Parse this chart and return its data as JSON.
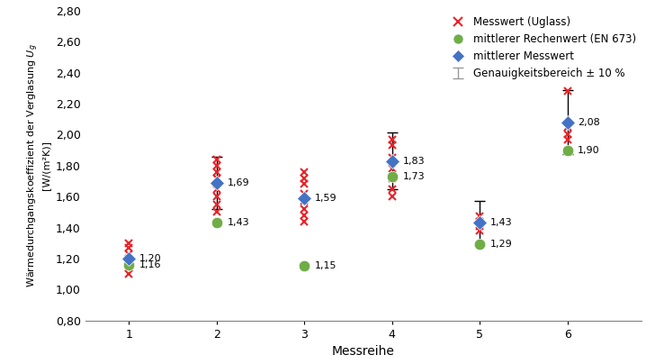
{
  "messreihen": [
    1,
    2,
    3,
    4,
    5,
    6
  ],
  "rechenwert": [
    1.16,
    1.43,
    1.15,
    1.73,
    1.29,
    1.9
  ],
  "mittlerer_messwert": [
    1.2,
    1.69,
    1.59,
    1.83,
    1.43,
    2.08
  ],
  "messwert_scatter": {
    "1": [
      1.1,
      1.14,
      1.17,
      1.2,
      1.23,
      1.27,
      1.3
    ],
    "2": [
      1.5,
      1.55,
      1.6,
      1.65,
      1.68,
      1.72,
      1.76,
      1.8,
      1.84
    ],
    "3": [
      1.44,
      1.48,
      1.52,
      1.57,
      1.62,
      1.68,
      1.72,
      1.76
    ],
    "4": [
      1.6,
      1.65,
      1.72,
      1.78,
      1.85,
      1.93,
      1.97
    ],
    "5": [
      1.38,
      1.41,
      1.44,
      1.47
    ],
    "6": [
      1.9,
      1.97,
      2.0,
      2.05,
      2.28
    ]
  },
  "error_bars": {
    "1": 0.0,
    "2": 0.169,
    "3": 0.0,
    "4": 0.183,
    "5": 0.143,
    "6": 0.208
  },
  "rechenwert_labels": [
    "1,16",
    "1,43",
    "1,15",
    "1,73",
    "1,29",
    "1,90"
  ],
  "messwert_labels": [
    "1,20",
    "1,69",
    "1,59",
    "1,83",
    "1,43",
    "2,08"
  ],
  "ylim": [
    0.8,
    2.8
  ],
  "yticks": [
    0.8,
    1.0,
    1.2,
    1.4,
    1.6,
    1.8,
    2.0,
    2.2,
    2.4,
    2.6,
    2.8
  ],
  "xlabel": "Messreihe",
  "color_red": "#E8242A",
  "color_green": "#70AD47",
  "color_blue": "#4472C4",
  "color_gray": "#808080",
  "color_black": "#000000",
  "legend_labels": [
    "Messwert (Uglass)",
    "mittlerer Rechenwert (EN 673)",
    "mittlerer Messwert",
    "Genauigkeitsbereich ± 10 %"
  ]
}
